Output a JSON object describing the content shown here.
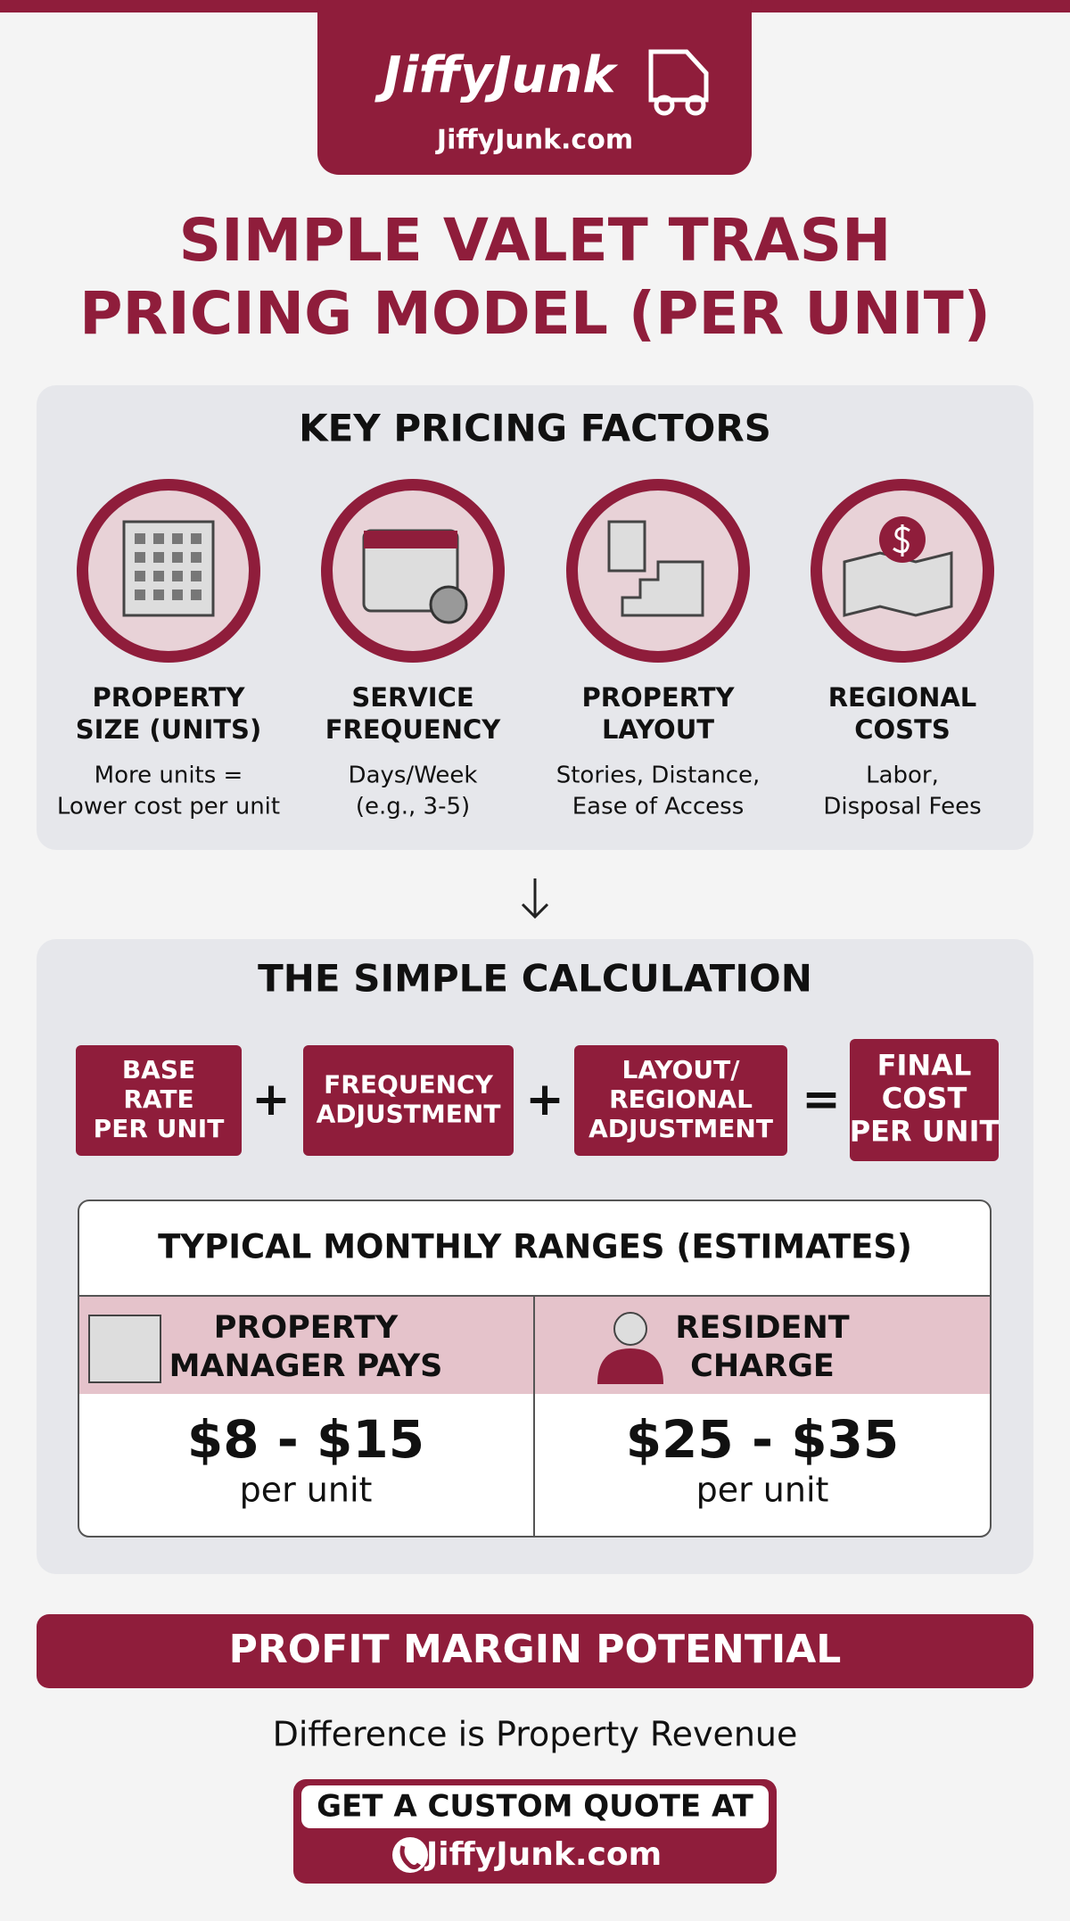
{
  "header": {
    "logo": "JiffyJunk",
    "url": "JiffyJunk.com"
  },
  "title": [
    "SIMPLE VALET TRASH",
    "PRICING MODEL (PER UNIT)"
  ],
  "factors": {
    "title": "KEY PRICING FACTORS",
    "items": [
      {
        "name": [
          "PROPERTY",
          "SIZE (UNITS)"
        ],
        "description": [
          "More units =",
          "Lower cost per unit"
        ]
      },
      {
        "name": [
          "SERVICE",
          "FREQUENCY"
        ],
        "description": [
          "Days/Week",
          "(e.g., 3-5)"
        ]
      },
      {
        "name": [
          "PROPERTY",
          "LAYOUT"
        ],
        "description": [
          "Stories, Distance,",
          "Ease of Access"
        ]
      },
      {
        "name": [
          "REGIONAL",
          "COSTS"
        ],
        "description": [
          "Labor,",
          "Disposal Fees"
        ]
      }
    ]
  },
  "calculation": {
    "title": "THE SIMPLE CALCULATION",
    "terms": [
      [
        "BASE",
        "RATE",
        "PER UNIT"
      ],
      [
        "FREQUENCY",
        "ADJUSTMENT"
      ],
      [
        "LAYOUT/",
        "REGIONAL",
        "ADJUSTMENT"
      ],
      [
        "FINAL",
        "COST",
        "PER UNIT"
      ]
    ],
    "operators": [
      "+",
      "+",
      "="
    ]
  },
  "ranges": {
    "title": "TYPICAL MONTHLY RANGES (ESTIMATES)",
    "columns": [
      {
        "heading": [
          "PROPERTY",
          "MANAGER PAYS"
        ],
        "range": "$8 - $15",
        "unit": "per unit"
      },
      {
        "heading": [
          "RESIDENT",
          "CHARGE"
        ],
        "range": "$25 - $35",
        "unit": "per unit"
      }
    ]
  },
  "profit": {
    "banner": "PROFIT MARGIN POTENTIAL",
    "text": "Difference is Property Revenue"
  },
  "cta": {
    "text": "GET A CUSTOM QUOTE AT",
    "url": "JiffyJunk.com"
  }
}
